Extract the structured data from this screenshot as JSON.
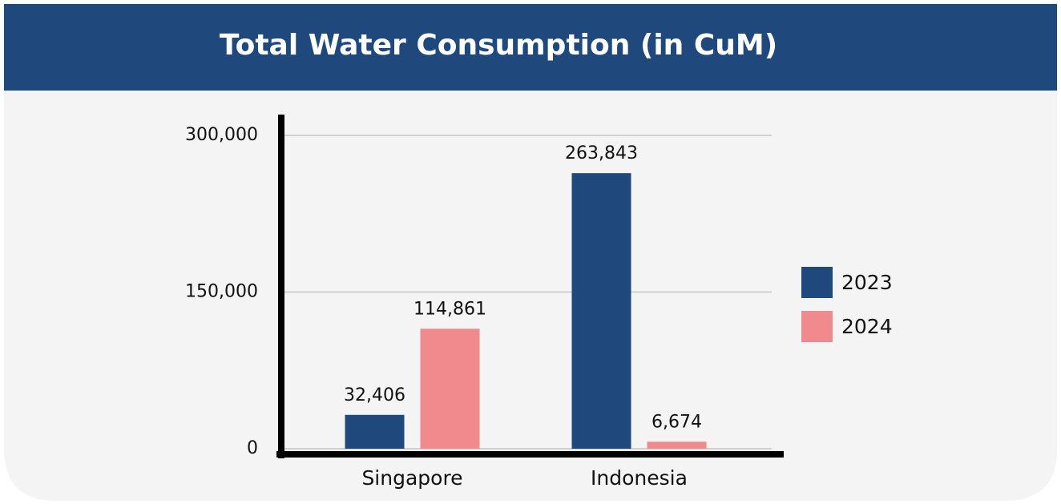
{
  "chart_data": {
    "type": "bar",
    "title": "Total Water Consumption (in CuM)",
    "categories": [
      "Singapore",
      "Indonesia"
    ],
    "series": [
      {
        "name": "2023",
        "color": "#1f497d",
        "values": [
          32406,
          263843
        ],
        "value_labels": [
          "32,406",
          "263,843"
        ]
      },
      {
        "name": "2024",
        "color": "#f08a8d",
        "values": [
          114861,
          6674
        ],
        "value_labels": [
          "114,861",
          "6,674"
        ]
      }
    ],
    "ylim": [
      0,
      300000
    ],
    "yticks": [
      0,
      {
        "value": 150000,
        "label": "150,000"
      },
      {
        "value": 300000,
        "label": "300,000"
      }
    ],
    "grid": true,
    "legend": "right"
  }
}
